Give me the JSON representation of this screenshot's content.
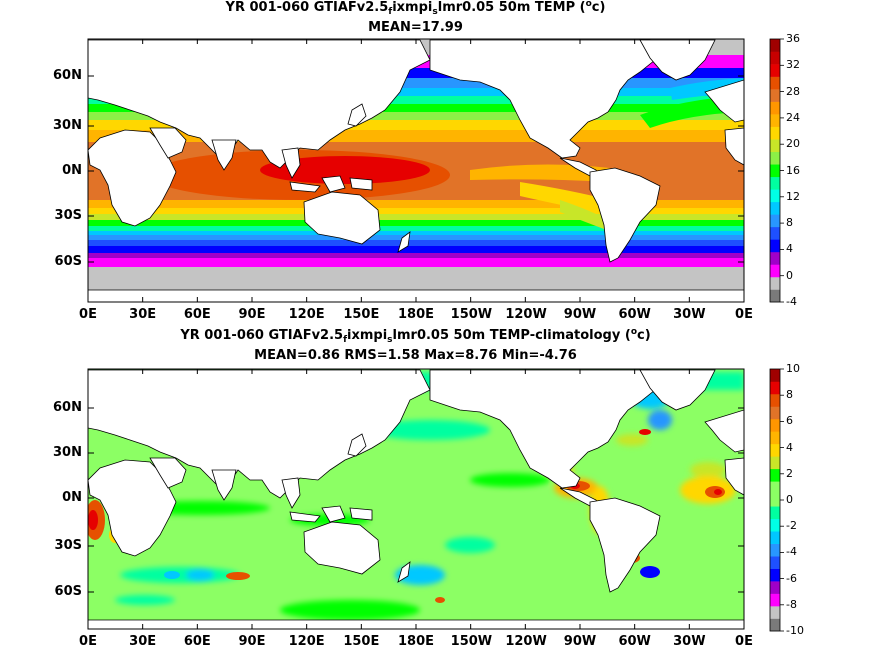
{
  "panels": [
    {
      "title_parts": [
        "YR 001-060 GTIAFv2.5",
        "f",
        "ixmpi",
        "s",
        "lmr0.05 50m TEMP (",
        "o",
        "c)"
      ],
      "subtitle": "MEAN=17.99",
      "colorbar": {
        "ticks": [
          "36",
          "32",
          "28",
          "24",
          "20",
          "16",
          "12",
          "8",
          "4",
          "0",
          "-4"
        ],
        "colors": [
          "#7a7a7a",
          "#c4c4c4",
          "#ff00ff",
          "#a000c8",
          "#0000ff",
          "#1e50ff",
          "#2896ff",
          "#00c8ff",
          "#00ffe6",
          "#00ffa0",
          "#00ff00",
          "#8cf046",
          "#c8e628",
          "#ffd700",
          "#ffb400",
          "#ff9600",
          "#e17328",
          "#e65000",
          "#e60000",
          "#c80000",
          "#a00000"
        ]
      }
    },
    {
      "title_parts": [
        "YR 001-060 GTIAFv2.5",
        "f",
        "ixmpi",
        "s",
        "lmr0.05 50m TEMP-climatology (",
        "o",
        "c)"
      ],
      "subtitle": "MEAN=0.86   RMS=1.58   Max=8.76   Min=-4.76",
      "colorbar": {
        "ticks": [
          "10",
          "8",
          "6",
          "4",
          "2",
          "0",
          "-2",
          "-4",
          "-6",
          "-8",
          "-10"
        ],
        "colors": [
          "#7a7a7a",
          "#c4c4c4",
          "#ff00ff",
          "#a000c8",
          "#0000ff",
          "#1e50ff",
          "#2896ff",
          "#00c8ff",
          "#00ffe6",
          "#00ffa0",
          "#8cff64",
          "#8cff64",
          "#00ff00",
          "#c8e628",
          "#ffd700",
          "#ffb400",
          "#ff9600",
          "#e17328",
          "#e65000",
          "#e60000",
          "#a00000"
        ]
      }
    }
  ],
  "lat_labels": [
    "60N",
    "30N",
    "0N",
    "30S",
    "60S"
  ],
  "lon_labels": [
    "0E",
    "30E",
    "60E",
    "90E",
    "120E",
    "150E",
    "180E",
    "150W",
    "120W",
    "90W",
    "60W",
    "30W",
    "0E"
  ]
}
